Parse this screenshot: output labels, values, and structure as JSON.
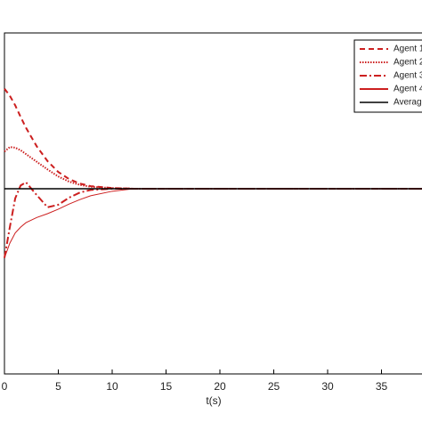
{
  "chart_data": {
    "type": "line",
    "xlabel": "t(s)",
    "x": [
      0,
      0.5,
      1,
      1.5,
      2,
      3,
      4,
      5,
      6,
      7,
      8,
      10,
      12,
      15,
      20,
      40
    ],
    "xlim": [
      0,
      40
    ],
    "xticks": [
      0,
      5,
      10,
      15,
      20,
      25,
      30,
      35
    ],
    "ylim": [
      -2.89,
      2.43
    ],
    "legend": "upper right",
    "series": [
      {
        "name": "Agent 1",
        "color": "#cc1f1f",
        "linestyle": "dashed",
        "values": [
          1.56,
          1.45,
          1.3,
          1.12,
          0.95,
          0.66,
          0.43,
          0.26,
          0.15,
          0.08,
          0.04,
          0.01,
          0,
          0,
          0,
          0
        ]
      },
      {
        "name": "Agent 2",
        "color": "#cc1f1f",
        "linestyle": "dotted",
        "values": [
          0.58,
          0.65,
          0.64,
          0.6,
          0.54,
          0.42,
          0.3,
          0.19,
          0.11,
          0.06,
          0.03,
          0.01,
          0,
          0,
          0,
          0
        ]
      },
      {
        "name": "Agent 3",
        "color": "#cc1f1f",
        "linestyle": "dashdot",
        "values": [
          -1.08,
          -0.6,
          -0.15,
          0.05,
          0.1,
          -0.1,
          -0.29,
          -0.25,
          -0.14,
          -0.06,
          -0.02,
          0,
          0,
          0,
          0,
          0
        ]
      },
      {
        "name": "Agent 4",
        "color": "#cc1f1f",
        "linestyle": "solid",
        "values": [
          -1.08,
          -0.85,
          -0.69,
          -0.6,
          -0.53,
          -0.45,
          -0.39,
          -0.32,
          -0.24,
          -0.17,
          -0.11,
          -0.04,
          0,
          0,
          0,
          0
        ]
      },
      {
        "name": "Average",
        "color": "#000000",
        "linestyle": "solid",
        "values": [
          0,
          0,
          0,
          0,
          0,
          0,
          0,
          0,
          0,
          0,
          0,
          0,
          0,
          0,
          0,
          0
        ]
      }
    ]
  }
}
